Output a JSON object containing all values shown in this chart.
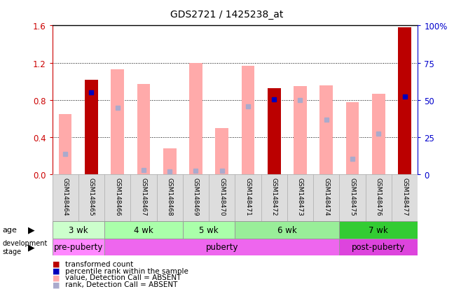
{
  "title": "GDS2721 / 1425238_at",
  "samples": [
    "GSM148464",
    "GSM148465",
    "GSM148466",
    "GSM148467",
    "GSM148468",
    "GSM148469",
    "GSM148470",
    "GSM148471",
    "GSM148472",
    "GSM148473",
    "GSM148474",
    "GSM148475",
    "GSM148476",
    "GSM148477"
  ],
  "transformed_count": [
    null,
    1.02,
    null,
    null,
    null,
    null,
    null,
    null,
    0.93,
    null,
    null,
    null,
    null,
    1.58
  ],
  "percentile_rank_present": [
    null,
    0.88,
    null,
    null,
    null,
    null,
    null,
    null,
    0.81,
    null,
    null,
    null,
    null,
    0.84
  ],
  "value_absent": [
    0.65,
    null,
    1.13,
    0.97,
    0.28,
    1.2,
    0.5,
    1.17,
    null,
    0.95,
    0.96,
    0.78,
    0.87,
    null
  ],
  "rank_absent": [
    0.22,
    null,
    0.72,
    0.05,
    0.03,
    0.04,
    0.04,
    0.73,
    null,
    0.8,
    0.59,
    0.17,
    0.44,
    null
  ],
  "age_groups": [
    {
      "label": "3 wk",
      "start": 0,
      "end": 2
    },
    {
      "label": "4 wk",
      "start": 2,
      "end": 5
    },
    {
      "label": "5 wk",
      "start": 5,
      "end": 7
    },
    {
      "label": "6 wk",
      "start": 7,
      "end": 11
    },
    {
      "label": "7 wk",
      "start": 11,
      "end": 14
    }
  ],
  "age_colors": [
    "#ccffcc",
    "#aaffaa",
    "#aaffaa",
    "#99ee99",
    "#33cc33"
  ],
  "dev_groups": [
    {
      "label": "pre-puberty",
      "start": 0,
      "end": 2
    },
    {
      "label": "puberty",
      "start": 2,
      "end": 11
    },
    {
      "label": "post-puberty",
      "start": 11,
      "end": 14
    }
  ],
  "dev_colors": [
    "#ff88ff",
    "#ee66ee",
    "#dd44dd"
  ],
  "ylim_left": [
    0,
    1.6
  ],
  "ylim_right": [
    0,
    100
  ],
  "yticks_left": [
    0,
    0.4,
    0.8,
    1.2,
    1.6
  ],
  "yticks_right": [
    0,
    25,
    50,
    75,
    100
  ],
  "bar_color_present": "#bb0000",
  "bar_color_absent_value": "#ffaaaa",
  "dot_color_present": "#0000bb",
  "dot_color_absent_rank": "#aaaacc",
  "bg_color": "#ffffff",
  "axis_color_left": "#cc0000",
  "axis_color_right": "#0000cc",
  "bar_width": 0.5
}
